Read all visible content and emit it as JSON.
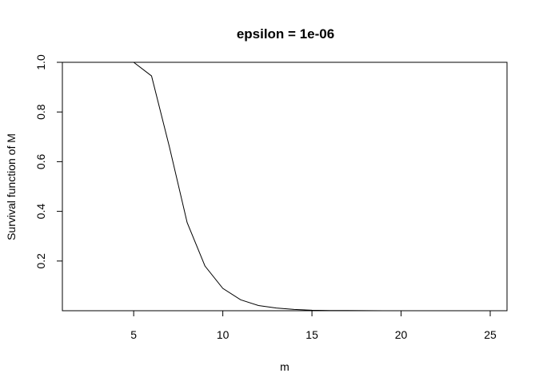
{
  "chart_data": {
    "type": "line",
    "title": "epsilon = 1e-06",
    "xlabel": "m",
    "ylabel": "Survival function of M",
    "xlim": [
      0,
      26
    ],
    "ylim": [
      0,
      1
    ],
    "xticks": [
      "5",
      "10",
      "15",
      "20",
      "25"
    ],
    "yticks": [
      "0.2",
      "0.4",
      "0.6",
      "0.8",
      "1.0"
    ],
    "grid": false,
    "series": [
      {
        "x": [
          1,
          2,
          3,
          4,
          5,
          6,
          7,
          8,
          9,
          10,
          11,
          12,
          13,
          14,
          15,
          16,
          17,
          18,
          19,
          20,
          21,
          22,
          23,
          24,
          25
        ],
        "values": [
          1.0,
          1.0,
          1.0,
          1.0,
          1.0,
          0.945,
          0.66,
          0.355,
          0.18,
          0.09,
          0.044,
          0.021,
          0.011,
          0.005,
          0.002,
          0.001,
          0.0005,
          0.0002,
          0.0001,
          0.0,
          0.0,
          0.0,
          0.0,
          0.0,
          0.0
        ]
      }
    ],
    "color": "#000000"
  }
}
